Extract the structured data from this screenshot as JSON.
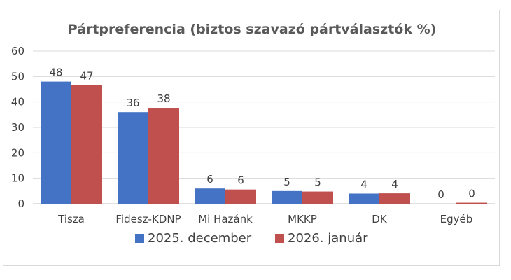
{
  "chart_data": {
    "type": "bar",
    "title": "Pártpreferencia (biztos szavazó pártválasztók %)",
    "categories": [
      "Tisza",
      "Fidesz-KDNP",
      "Mi Hazánk",
      "MKKP",
      "DK",
      "Egyéb"
    ],
    "series": [
      {
        "name": "2025. december",
        "color": "#4472c4",
        "values": [
          48,
          36,
          6,
          5,
          4,
          0
        ]
      },
      {
        "name": "2026. január",
        "color": "#c0504d",
        "values": [
          47,
          38,
          6,
          5,
          4,
          0
        ]
      }
    ],
    "data_label_precision_values": [
      [
        48,
        36,
        6,
        5,
        4,
        0
      ],
      [
        46.6,
        37.7,
        5.6,
        4.8,
        4.1,
        0.4
      ]
    ],
    "yticks": [
      0,
      10,
      20,
      30,
      40,
      50,
      60
    ],
    "ylim": [
      0,
      60
    ],
    "xlabel": "",
    "ylabel": "",
    "grid": true,
    "legend_position": "bottom",
    "colors": {
      "grid": "#d9d9d9",
      "axis": "#bfbfbf",
      "text": "#404040",
      "title": "#595959"
    }
  }
}
